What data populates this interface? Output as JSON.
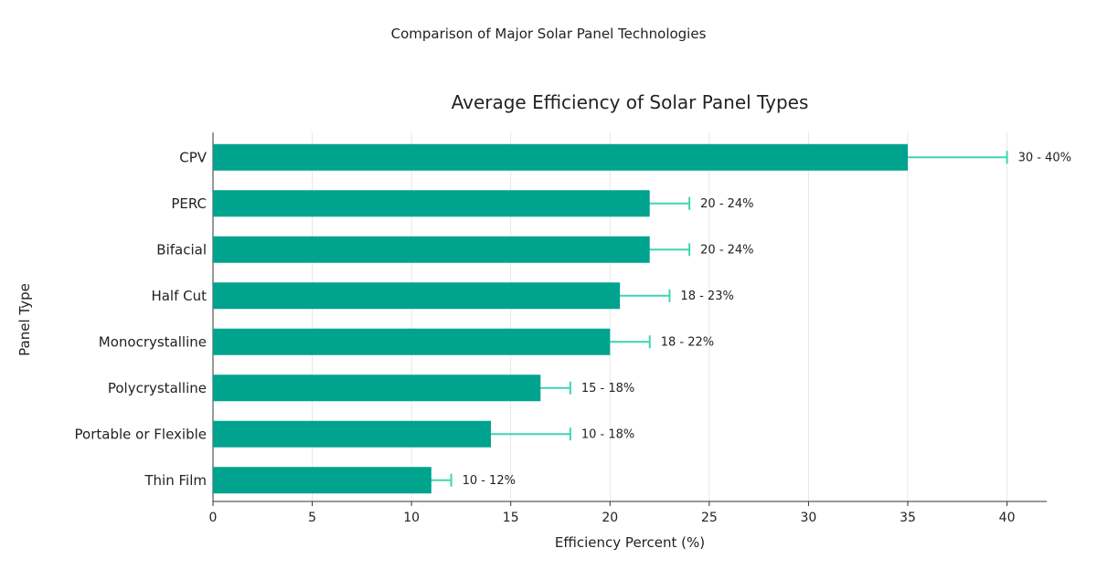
{
  "page_title": "Comparison of Major Solar Panel Technologies",
  "chart_data": {
    "type": "bar",
    "orientation": "horizontal",
    "title": "Average Efficiency of Solar Panel Types",
    "xlabel": "Efficiency Percent (%)",
    "ylabel": "Panel Type",
    "xlim": [
      0,
      42
    ],
    "xticks": [
      0,
      5,
      10,
      15,
      20,
      25,
      30,
      35,
      40
    ],
    "grid": "vertical",
    "categories": [
      "CPV",
      "PERC",
      "Bifacial",
      "Half Cut",
      "Monocrystalline",
      "Polycrystalline",
      "Portable or Flexible",
      "Thin Film"
    ],
    "values": [
      35,
      22,
      22,
      20.5,
      20,
      16.5,
      14,
      11
    ],
    "ranges": [
      [
        30,
        40
      ],
      [
        20,
        24
      ],
      [
        20,
        24
      ],
      [
        18,
        23
      ],
      [
        18,
        22
      ],
      [
        15,
        18
      ],
      [
        10,
        18
      ],
      [
        10,
        12
      ]
    ],
    "range_labels": [
      "30 - 40%",
      "20 - 24%",
      "20 - 24%",
      "18 - 23%",
      "18 - 22%",
      "15 - 18%",
      "10 - 18%",
      "10 - 12%"
    ],
    "colors": {
      "bar": "#00a38d",
      "error": "#3dd6b0",
      "grid": "#e6e6e6",
      "axis": "#333333"
    }
  }
}
